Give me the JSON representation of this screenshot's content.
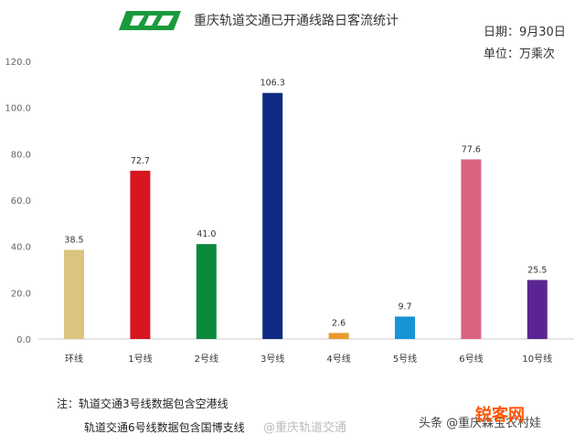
{
  "header": {
    "title": "重庆轨道交通已开通线路日客流统计",
    "date_label": "日期：9月30日",
    "unit_label": "单位：万乘次",
    "logo_color": "#1a9a3c"
  },
  "chart_data": {
    "type": "bar",
    "title": "重庆轨道交通已开通线路日客流统计",
    "xlabel": "",
    "ylabel": "",
    "ylim": [
      0,
      120
    ],
    "yticks": [
      "0.0",
      "20.0",
      "40.0",
      "60.0",
      "80.0",
      "100.0",
      "120.0"
    ],
    "grid": false,
    "categories": [
      "环线",
      "1号线",
      "2号线",
      "3号线",
      "4号线",
      "5号线",
      "6号线",
      "10号线"
    ],
    "values": [
      38.5,
      72.7,
      41.0,
      106.3,
      2.6,
      9.7,
      77.6,
      25.5
    ],
    "value_labels": [
      "38.5",
      "72.7",
      "41.0",
      "106.3",
      "2.6",
      "9.7",
      "77.6",
      "25.5"
    ],
    "colors": [
      "#dcc47e",
      "#d7161f",
      "#0c8a3c",
      "#0e2a84",
      "#e89a2d",
      "#1794d6",
      "#db6380",
      "#5a2592"
    ]
  },
  "notes": {
    "line1": "注：轨道交通3号线数据包含空港线",
    "line2": "轨道交通6号线数据包含国博支线"
  },
  "watermarks": {
    "weibo": "@重庆轨道交通",
    "toutiao": "头条 @重庆森宝农村娃",
    "site": "锐客网"
  }
}
